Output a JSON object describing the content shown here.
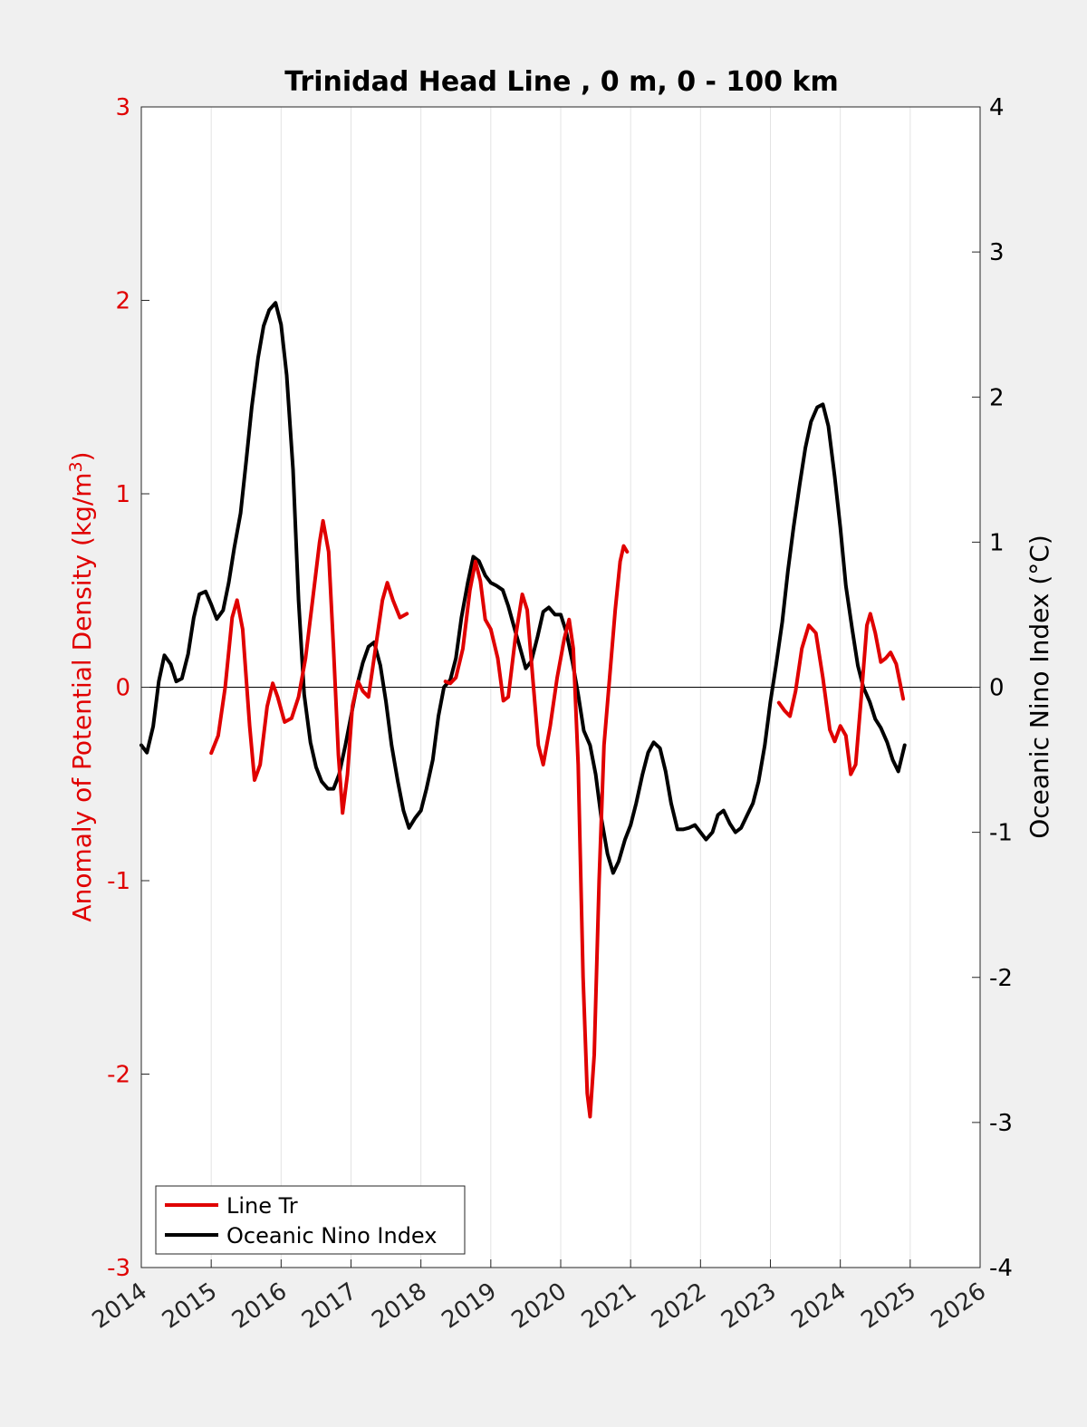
{
  "chart_data": {
    "type": "line",
    "title": "Trinidad Head Line , 0 m, 0 - 100 km",
    "xlim": [
      2014,
      2026
    ],
    "x_ticks": [
      2014,
      2015,
      2016,
      2017,
      2018,
      2019,
      2020,
      2021,
      2022,
      2023,
      2024,
      2025,
      2026
    ],
    "x_tick_labels": [
      "2014",
      "2015",
      "2016",
      "2017",
      "2018",
      "2019",
      "2020",
      "2021",
      "2022",
      "2023",
      "2024",
      "2025",
      "2026"
    ],
    "grid": "vertical",
    "zero_line": true,
    "legend_position": "bottom-left",
    "y_left": {
      "label": "Anomaly of Potential Density (kg/m",
      "label_superscript": "3",
      "label_close": ")",
      "lim": [
        -3,
        3
      ],
      "ticks": [
        -3,
        -2,
        -1,
        0,
        1,
        2,
        3
      ],
      "tick_labels": [
        "-3",
        "-2",
        "-1",
        "0",
        "1",
        "2",
        "3"
      ],
      "color": "#e00000"
    },
    "y_right": {
      "label": "Oceanic Nino Index (°C)",
      "lim": [
        -4,
        4
      ],
      "ticks": [
        -4,
        -3,
        -2,
        -1,
        0,
        1,
        2,
        3,
        4
      ],
      "tick_labels": [
        "-4",
        "-3",
        "-2",
        "-1",
        "0",
        "1",
        "2",
        "3",
        "4"
      ],
      "color": "#000000"
    },
    "series": [
      {
        "name": "Line Tr",
        "axis": "left",
        "color": "#e00000",
        "segments": [
          [
            [
              2015.0,
              -0.34
            ],
            [
              2015.1,
              -0.25
            ],
            [
              2015.2,
              0.0
            ],
            [
              2015.3,
              0.36
            ],
            [
              2015.37,
              0.45
            ],
            [
              2015.45,
              0.3
            ],
            [
              2015.55,
              -0.2
            ],
            [
              2015.62,
              -0.48
            ],
            [
              2015.7,
              -0.4
            ],
            [
              2015.8,
              -0.1
            ],
            [
              2015.88,
              0.02
            ],
            [
              2015.95,
              -0.05
            ],
            [
              2016.05,
              -0.18
            ],
            [
              2016.15,
              -0.16
            ],
            [
              2016.25,
              -0.05
            ],
            [
              2016.35,
              0.15
            ],
            [
              2016.45,
              0.45
            ],
            [
              2016.55,
              0.75
            ],
            [
              2016.6,
              0.86
            ],
            [
              2016.68,
              0.7
            ],
            [
              2016.75,
              0.2
            ],
            [
              2016.82,
              -0.35
            ],
            [
              2016.88,
              -0.65
            ],
            [
              2016.95,
              -0.45
            ],
            [
              2017.02,
              -0.1
            ],
            [
              2017.1,
              0.03
            ],
            [
              2017.17,
              -0.02
            ],
            [
              2017.25,
              -0.05
            ],
            [
              2017.35,
              0.2
            ],
            [
              2017.45,
              0.45
            ],
            [
              2017.52,
              0.54
            ],
            [
              2017.6,
              0.45
            ],
            [
              2017.7,
              0.36
            ],
            [
              2017.8,
              0.38
            ]
          ],
          [
            [
              2018.35,
              0.03
            ],
            [
              2018.42,
              0.02
            ],
            [
              2018.5,
              0.05
            ],
            [
              2018.6,
              0.2
            ],
            [
              2018.7,
              0.5
            ],
            [
              2018.78,
              0.65
            ],
            [
              2018.85,
              0.55
            ],
            [
              2018.92,
              0.35
            ],
            [
              2019.0,
              0.3
            ],
            [
              2019.1,
              0.15
            ],
            [
              2019.18,
              -0.07
            ],
            [
              2019.25,
              -0.05
            ],
            [
              2019.35,
              0.25
            ],
            [
              2019.45,
              0.48
            ],
            [
              2019.52,
              0.4
            ],
            [
              2019.6,
              0.05
            ],
            [
              2019.68,
              -0.3
            ],
            [
              2019.75,
              -0.4
            ],
            [
              2019.85,
              -0.2
            ],
            [
              2019.95,
              0.05
            ],
            [
              2020.05,
              0.25
            ],
            [
              2020.12,
              0.35
            ],
            [
              2020.18,
              0.2
            ],
            [
              2020.25,
              -0.4
            ],
            [
              2020.32,
              -1.5
            ],
            [
              2020.38,
              -2.1
            ],
            [
              2020.42,
              -2.22
            ],
            [
              2020.48,
              -1.9
            ],
            [
              2020.55,
              -1.0
            ],
            [
              2020.62,
              -0.3
            ],
            [
              2020.7,
              0.05
            ],
            [
              2020.78,
              0.4
            ],
            [
              2020.85,
              0.65
            ],
            [
              2020.9,
              0.73
            ],
            [
              2020.95,
              0.7
            ]
          ],
          [
            [
              2023.12,
              -0.08
            ],
            [
              2023.2,
              -0.12
            ],
            [
              2023.28,
              -0.15
            ],
            [
              2023.36,
              -0.02
            ],
            [
              2023.45,
              0.2
            ],
            [
              2023.55,
              0.32
            ],
            [
              2023.65,
              0.28
            ],
            [
              2023.75,
              0.05
            ],
            [
              2023.85,
              -0.22
            ],
            [
              2023.92,
              -0.28
            ],
            [
              2024.0,
              -0.2
            ],
            [
              2024.08,
              -0.25
            ],
            [
              2024.15,
              -0.45
            ],
            [
              2024.22,
              -0.4
            ],
            [
              2024.3,
              -0.05
            ],
            [
              2024.38,
              0.32
            ],
            [
              2024.43,
              0.38
            ],
            [
              2024.5,
              0.28
            ],
            [
              2024.58,
              0.13
            ],
            [
              2024.65,
              0.15
            ],
            [
              2024.72,
              0.18
            ],
            [
              2024.8,
              0.12
            ],
            [
              2024.9,
              -0.06
            ]
          ]
        ]
      },
      {
        "name": "Oceanic Nino Index",
        "axis": "right",
        "color": "#000000",
        "points": [
          [
            2014.0,
            -0.4
          ],
          [
            2014.08,
            -0.45
          ],
          [
            2014.17,
            -0.27
          ],
          [
            2014.25,
            0.04
          ],
          [
            2014.33,
            0.22
          ],
          [
            2014.42,
            0.16
          ],
          [
            2014.5,
            0.04
          ],
          [
            2014.58,
            0.06
          ],
          [
            2014.67,
            0.23
          ],
          [
            2014.75,
            0.48
          ],
          [
            2014.83,
            0.64
          ],
          [
            2014.92,
            0.66
          ],
          [
            2015.0,
            0.57
          ],
          [
            2015.08,
            0.47
          ],
          [
            2015.17,
            0.53
          ],
          [
            2015.25,
            0.72
          ],
          [
            2015.33,
            0.96
          ],
          [
            2015.42,
            1.2
          ],
          [
            2015.5,
            1.56
          ],
          [
            2015.58,
            1.93
          ],
          [
            2015.67,
            2.27
          ],
          [
            2015.75,
            2.49
          ],
          [
            2015.83,
            2.6
          ],
          [
            2015.92,
            2.65
          ],
          [
            2016.0,
            2.5
          ],
          [
            2016.08,
            2.15
          ],
          [
            2016.17,
            1.5
          ],
          [
            2016.25,
            0.6
          ],
          [
            2016.33,
            -0.05
          ],
          [
            2016.42,
            -0.38
          ],
          [
            2016.5,
            -0.55
          ],
          [
            2016.58,
            -0.65
          ],
          [
            2016.67,
            -0.7
          ],
          [
            2016.75,
            -0.7
          ],
          [
            2016.83,
            -0.6
          ],
          [
            2016.92,
            -0.4
          ],
          [
            2017.0,
            -0.2
          ],
          [
            2017.08,
            0.0
          ],
          [
            2017.17,
            0.17
          ],
          [
            2017.25,
            0.28
          ],
          [
            2017.33,
            0.31
          ],
          [
            2017.42,
            0.15
          ],
          [
            2017.5,
            -0.1
          ],
          [
            2017.58,
            -0.4
          ],
          [
            2017.67,
            -0.65
          ],
          [
            2017.75,
            -0.85
          ],
          [
            2017.83,
            -0.97
          ],
          [
            2017.92,
            -0.9
          ],
          [
            2018.0,
            -0.85
          ],
          [
            2018.08,
            -0.7
          ],
          [
            2018.17,
            -0.5
          ],
          [
            2018.25,
            -0.2
          ],
          [
            2018.33,
            0.0
          ],
          [
            2018.42,
            0.05
          ],
          [
            2018.5,
            0.2
          ],
          [
            2018.58,
            0.48
          ],
          [
            2018.67,
            0.72
          ],
          [
            2018.75,
            0.9
          ],
          [
            2018.83,
            0.87
          ],
          [
            2018.92,
            0.77
          ],
          [
            2019.0,
            0.72
          ],
          [
            2019.08,
            0.7
          ],
          [
            2019.17,
            0.67
          ],
          [
            2019.25,
            0.56
          ],
          [
            2019.33,
            0.42
          ],
          [
            2019.42,
            0.27
          ],
          [
            2019.5,
            0.13
          ],
          [
            2019.58,
            0.18
          ],
          [
            2019.67,
            0.35
          ],
          [
            2019.75,
            0.52
          ],
          [
            2019.83,
            0.55
          ],
          [
            2019.92,
            0.5
          ],
          [
            2020.0,
            0.5
          ],
          [
            2020.08,
            0.38
          ],
          [
            2020.17,
            0.17
          ],
          [
            2020.25,
            -0.05
          ],
          [
            2020.33,
            -0.3
          ],
          [
            2020.42,
            -0.4
          ],
          [
            2020.5,
            -0.6
          ],
          [
            2020.58,
            -0.9
          ],
          [
            2020.67,
            -1.15
          ],
          [
            2020.75,
            -1.28
          ],
          [
            2020.83,
            -1.2
          ],
          [
            2020.92,
            -1.05
          ],
          [
            2021.0,
            -0.95
          ],
          [
            2021.08,
            -0.8
          ],
          [
            2021.17,
            -0.6
          ],
          [
            2021.25,
            -0.45
          ],
          [
            2021.33,
            -0.38
          ],
          [
            2021.42,
            -0.42
          ],
          [
            2021.5,
            -0.58
          ],
          [
            2021.58,
            -0.8
          ],
          [
            2021.67,
            -0.98
          ],
          [
            2021.75,
            -0.98
          ],
          [
            2021.83,
            -0.97
          ],
          [
            2021.92,
            -0.95
          ],
          [
            2022.0,
            -1.0
          ],
          [
            2022.08,
            -1.05
          ],
          [
            2022.17,
            -1.0
          ],
          [
            2022.25,
            -0.88
          ],
          [
            2022.33,
            -0.85
          ],
          [
            2022.42,
            -0.94
          ],
          [
            2022.5,
            -1.0
          ],
          [
            2022.58,
            -0.97
          ],
          [
            2022.67,
            -0.88
          ],
          [
            2022.75,
            -0.8
          ],
          [
            2022.83,
            -0.65
          ],
          [
            2022.92,
            -0.4
          ],
          [
            2023.0,
            -0.1
          ],
          [
            2023.08,
            0.15
          ],
          [
            2023.17,
            0.45
          ],
          [
            2023.25,
            0.8
          ],
          [
            2023.33,
            1.1
          ],
          [
            2023.42,
            1.4
          ],
          [
            2023.5,
            1.65
          ],
          [
            2023.58,
            1.83
          ],
          [
            2023.67,
            1.93
          ],
          [
            2023.75,
            1.95
          ],
          [
            2023.83,
            1.8
          ],
          [
            2023.92,
            1.45
          ],
          [
            2024.0,
            1.1
          ],
          [
            2024.08,
            0.7
          ],
          [
            2024.17,
            0.4
          ],
          [
            2024.25,
            0.15
          ],
          [
            2024.33,
            0.0
          ],
          [
            2024.42,
            -0.1
          ],
          [
            2024.5,
            -0.22
          ],
          [
            2024.58,
            -0.28
          ],
          [
            2024.67,
            -0.38
          ],
          [
            2024.75,
            -0.5
          ],
          [
            2024.83,
            -0.58
          ],
          [
            2024.92,
            -0.4
          ]
        ]
      }
    ]
  }
}
